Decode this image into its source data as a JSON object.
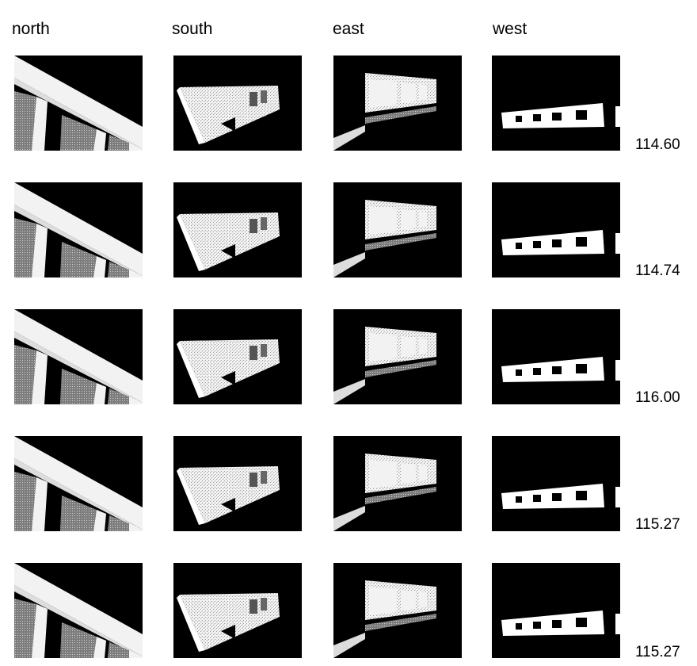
{
  "columns": [
    "north",
    "south",
    "east",
    "west"
  ],
  "rows": [
    {
      "value": "114.60"
    },
    {
      "value": "114.74"
    },
    {
      "value": "116.00"
    },
    {
      "value": "115.27"
    },
    {
      "value": "115.27"
    }
  ],
  "colors": {
    "background": "#ffffff",
    "render_dark": "#000000",
    "render_light": "#f2f2f2",
    "render_grain": "#9a9a9a"
  }
}
